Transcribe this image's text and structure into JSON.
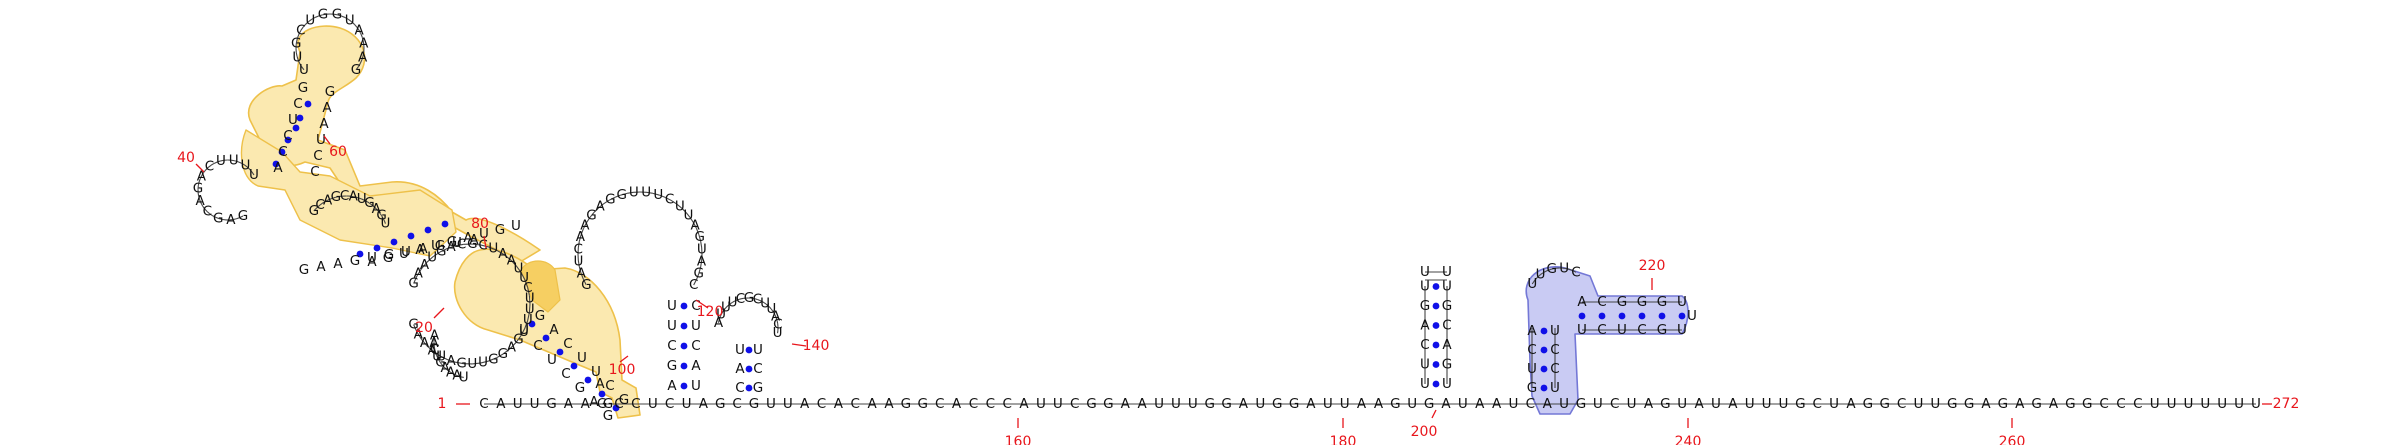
{
  "diagram": {
    "colors": {
      "nucleotide": "#111111",
      "backbone": "#444444",
      "base_pair": "#1010e8",
      "position_number": "#e8161c",
      "highlight_yellow_fill": "#fbe9b0",
      "highlight_yellow_stroke": "#eec14a",
      "highlight_blue_fill": "#c9cbf3",
      "highlight_blue_stroke": "#7478d6"
    },
    "baseline_sequence": "CAUUGAAGCCUCUAGCGUUACACAAGGCACCCAUUCGGAAUUUGGAUGGAUUAAGUGAUAAUCAUGUCUAGUAUAUUUGCUAGGCUUGGAGAGAGGCCCUUUUUUU",
    "hairpin_200_stem": "UUCAGUUGCAGU",
    "blue_stem_left": "GUCA",
    "blue_stem_right": "UCCUG",
    "blue_loop": "UUGUCAAGCGGGCU",
    "blue_upper": "ACGGGUUGCUCU",
    "helix_5p": "AGCUUCGGACU",
    "helix_3p": "UCCAUGG",
    "loop_90": "GAAUGACGCUAAUUCUUUUGAGGUUGAUAAAG",
    "hairpin_120": "GAUCAAGAGGUUUCUUAGUAGCGAG",
    "hairpin_140": "AUUUCGCUUACUCAU",
    "bulge_40": "GACAGUACGAAGCGUUGGUGAUUCCGCAAGC",
    "position_labels": {
      "start": "1",
      "end": "272",
      "n20": "20",
      "n40": "40",
      "n60": "60",
      "n80": "80",
      "n100": "100",
      "n120": "120",
      "n140": "140",
      "n160": "160",
      "n180": "180",
      "n200": "200",
      "n220": "220",
      "n240": "240",
      "n260": "260"
    }
  }
}
